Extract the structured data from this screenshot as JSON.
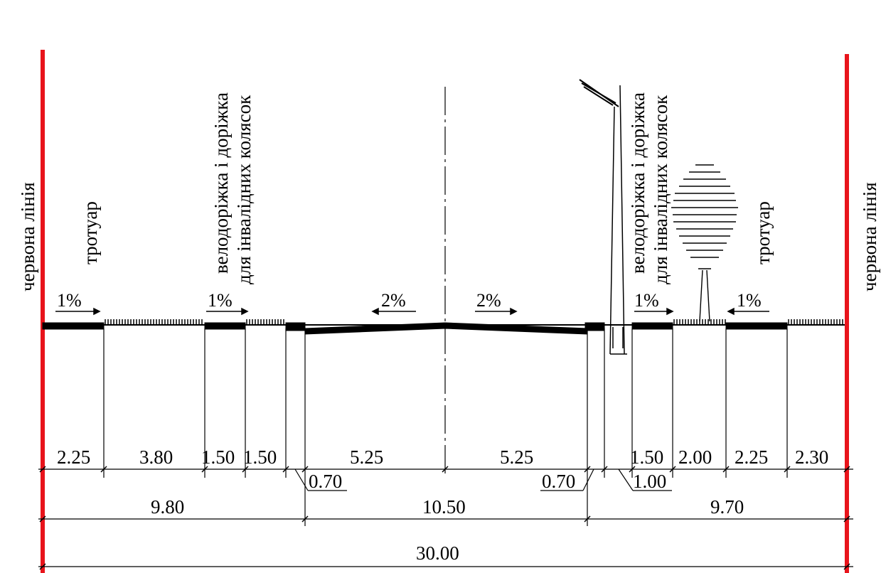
{
  "labels": {
    "red_line_left": "червона лінія",
    "red_line_right": "червона лінія",
    "sidewalk_left": "тротуар",
    "sidewalk_right": "тротуар",
    "bike_left_line1": "велодоріжка і доріжка",
    "bike_left_line2": "для інвалідних колясок",
    "bike_right_line1": "велодоріжка і доріжка",
    "bike_right_line2": "для інвалідних колясок"
  },
  "slopes": [
    "1%",
    "1%",
    "2%",
    "2%",
    "1%",
    "1%"
  ],
  "dimensions": {
    "row1": [
      "2.25",
      "3.80",
      "1.50",
      "1.50",
      "5.25",
      "5.25",
      "1.50",
      "2.00",
      "2.25",
      "2.30"
    ],
    "small": [
      "0.70",
      "0.70",
      "1.00"
    ],
    "row2": [
      "9.80",
      "10.50",
      "9.70"
    ],
    "total": "30.00"
  },
  "colors": {
    "red_line": "#e8141b",
    "ink": "#000000"
  }
}
